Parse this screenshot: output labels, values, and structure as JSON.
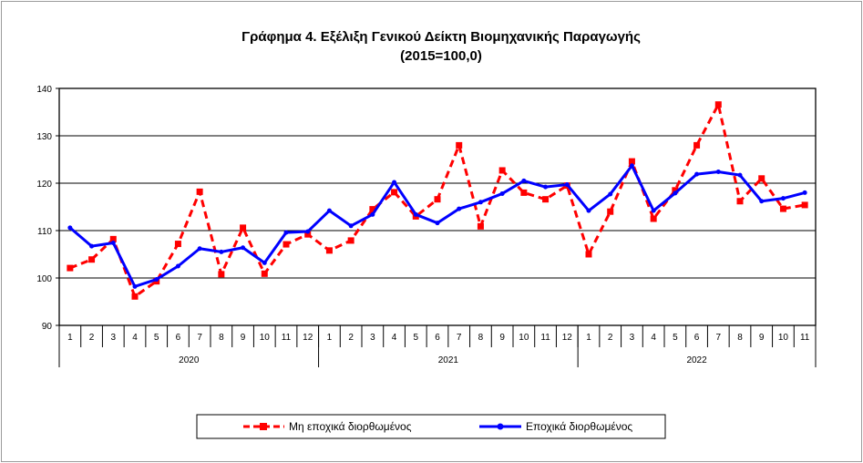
{
  "chart_data": {
    "type": "line",
    "title": "Γράφημα 4. Εξέλιξη Γενικού Δείκτη Βιομηχανικής Παραγωγής",
    "subtitle": "(2015=100,0)",
    "xlabel": "",
    "ylabel": "",
    "ylim": [
      90,
      140
    ],
    "yticks": [
      90,
      100,
      110,
      120,
      130,
      140
    ],
    "grid": true,
    "legend_position": "bottom",
    "categories": [
      "1",
      "2",
      "3",
      "4",
      "5",
      "6",
      "7",
      "8",
      "9",
      "10",
      "11",
      "12",
      "1",
      "2",
      "3",
      "4",
      "5",
      "6",
      "7",
      "8",
      "9",
      "10",
      "11",
      "12",
      "1",
      "2",
      "3",
      "4",
      "5",
      "6",
      "7",
      "8",
      "9",
      "10",
      "11"
    ],
    "years": [
      {
        "label": "2020",
        "count": 12
      },
      {
        "label": "2021",
        "count": 12
      },
      {
        "label": "2022",
        "count": 11
      }
    ],
    "series": [
      {
        "name": "Μη εποχικά διορθωμένος",
        "color": "#ff0000",
        "style": "dashed",
        "marker": "square",
        "values": [
          102.1,
          103.9,
          108.2,
          96.1,
          99.3,
          107.2,
          118.2,
          100.8,
          110.6,
          100.9,
          107.1,
          109.2,
          105.8,
          107.9,
          114.5,
          118.1,
          113.0,
          116.6,
          128.0,
          110.9,
          122.7,
          118.0,
          116.6,
          119.5,
          105.0,
          114.0,
          124.6,
          112.5,
          118.5,
          128.0,
          136.6,
          116.2,
          121.0,
          114.6,
          115.4
        ]
      },
      {
        "name": "Εποχικά διορθωμένος",
        "color": "#0000ff",
        "style": "solid",
        "marker": "dot",
        "values": [
          110.6,
          106.7,
          107.4,
          98.2,
          99.7,
          102.5,
          106.2,
          105.5,
          106.4,
          103.2,
          109.6,
          109.8,
          114.2,
          111.0,
          113.4,
          120.2,
          113.4,
          111.6,
          114.6,
          116.0,
          117.8,
          120.5,
          119.2,
          119.7,
          114.2,
          117.7,
          123.7,
          114.2,
          117.9,
          121.9,
          122.4,
          121.7,
          116.2,
          116.8,
          118.0
        ]
      }
    ]
  }
}
